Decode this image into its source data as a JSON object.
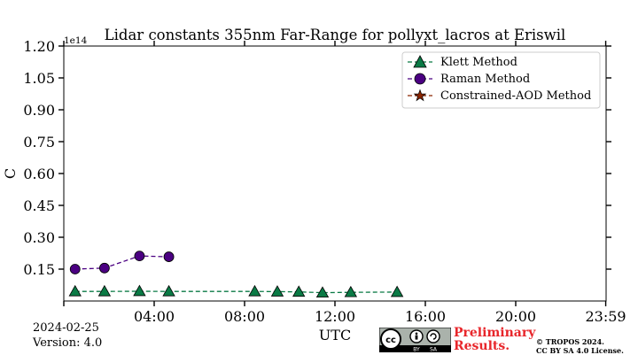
{
  "chart_data": {
    "type": "line",
    "title": "Lidar constants 355nm Far-Range for pollyxt_lacros at Eriswil",
    "xlabel": "UTC",
    "ylabel": "C",
    "y_scale_label": "1e14",
    "x_range_hours": [
      0,
      24
    ],
    "ylim": [
      0.0,
      1.2
    ],
    "x_ticks": [
      0,
      4,
      8,
      12,
      16,
      20,
      23.983
    ],
    "x_tick_labels": [
      "",
      "04:00",
      "08:00",
      "12:00",
      "16:00",
      "20:00",
      "23:59"
    ],
    "y_ticks": [
      0.15,
      0.3,
      0.45,
      0.6,
      0.75,
      0.9,
      1.05,
      1.2
    ],
    "y_tick_labels": [
      "0.15",
      "0.30",
      "0.45",
      "0.60",
      "0.75",
      "0.90",
      "1.05",
      "1.20"
    ],
    "legend_position": "top-right",
    "series": [
      {
        "name": "Klett Method",
        "color": "#0a7a45",
        "marker": "triangle",
        "x": [
          0.5,
          1.8,
          3.35,
          4.65,
          8.45,
          9.45,
          10.4,
          11.45,
          12.7,
          14.75
        ],
        "y": [
          0.045,
          0.045,
          0.046,
          0.045,
          0.045,
          0.044,
          0.043,
          0.039,
          0.041,
          0.042
        ]
      },
      {
        "name": "Raman Method",
        "color": "#4b0082",
        "marker": "circle",
        "x": [
          0.5,
          1.8,
          3.35,
          4.65
        ],
        "y": [
          0.15,
          0.155,
          0.212,
          0.208
        ]
      },
      {
        "name": "Constrained-AOD Method",
        "color": "#8b2500",
        "marker": "star",
        "x": [],
        "y": []
      }
    ]
  },
  "footer": {
    "date": "2024-02-25",
    "version": "Version: 4.0",
    "preliminary_line1": "Preliminary",
    "preliminary_line2": "Results.",
    "copyright_line1": "© TROPOS 2024.",
    "copyright_line2": "CC BY SA 4.0 License.",
    "license_badge_by": "BY",
    "license_badge_sa": "SA"
  }
}
